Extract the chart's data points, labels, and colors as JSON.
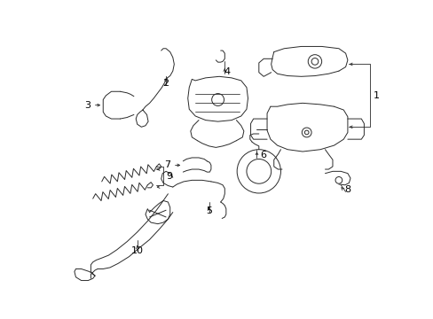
{
  "background_color": "#ffffff",
  "line_color": "#2a2a2a",
  "figsize": [
    4.89,
    3.6
  ],
  "dpi": 100,
  "lw": 0.7
}
